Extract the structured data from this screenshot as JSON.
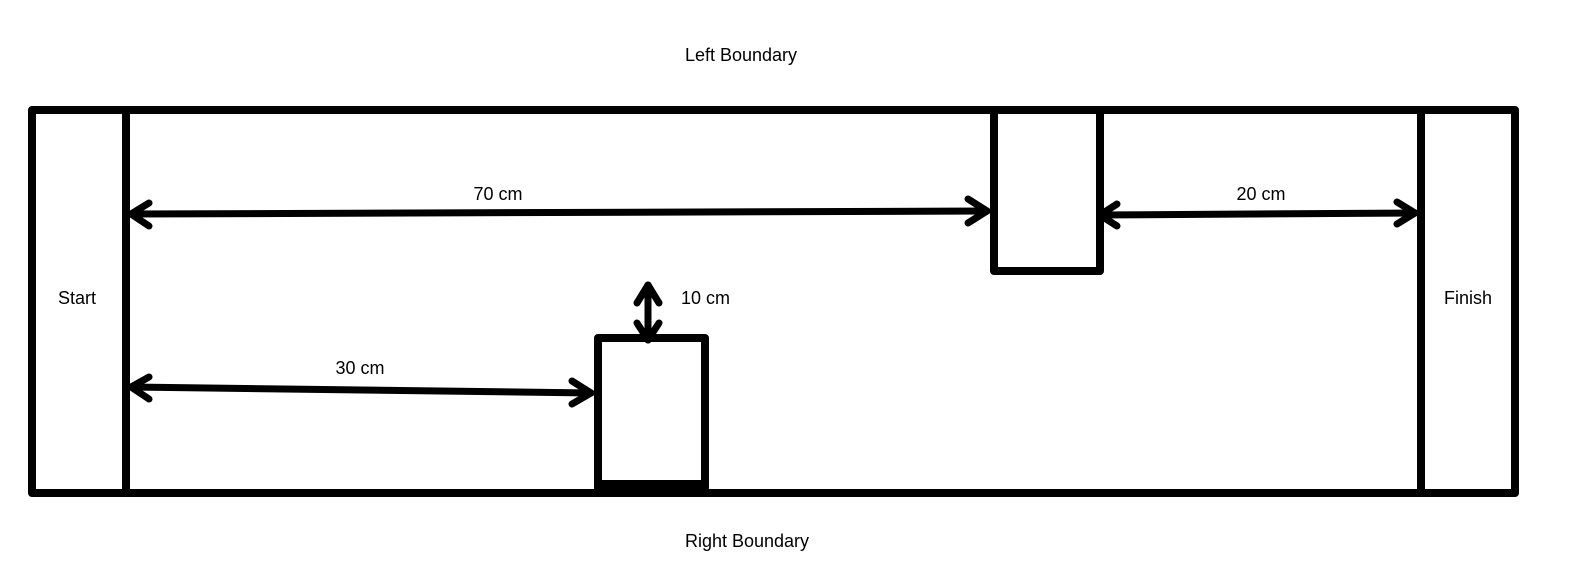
{
  "diagram": {
    "boundaries": {
      "top": "Left Boundary",
      "bottom": "Right Boundary"
    },
    "zones": {
      "start": "Start",
      "finish": "Finish"
    },
    "dimensions": {
      "start_to_obstacle_top": "70 cm",
      "obstacle_top_to_finish": "20 cm",
      "start_to_obstacle_bottom": "30 cm",
      "obstacle_bottom_gap": "10 cm"
    }
  },
  "colors": {
    "line": "#000000",
    "background": "#ffffff"
  }
}
